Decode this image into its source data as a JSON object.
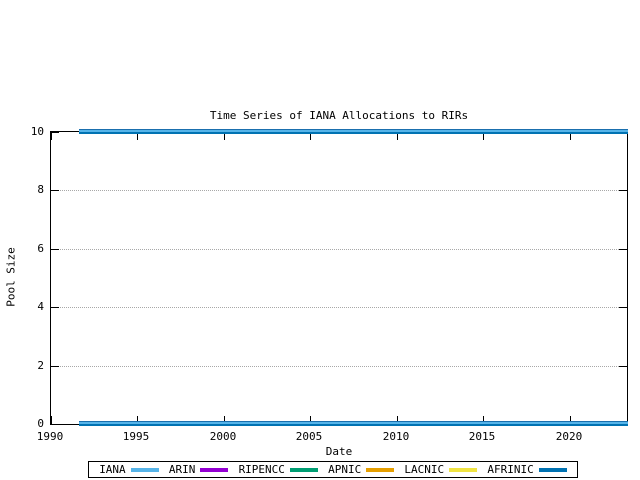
{
  "chart_data": {
    "type": "line",
    "title": "Time Series of IANA Allocations to RIRs",
    "xlabel": "Date",
    "ylabel": "Pool Size",
    "xlim": [
      1990,
      2023.3
    ],
    "ylim": [
      0,
      10
    ],
    "x_ticks": [
      1990,
      1995,
      2000,
      2005,
      2010,
      2015,
      2020
    ],
    "y_ticks": [
      0,
      2,
      4,
      6,
      8,
      10
    ],
    "grid": {
      "horizontal_dotted_at": [
        2,
        4,
        6,
        8
      ],
      "color": "#a8a8a8"
    },
    "legend_position": "bottom-outside-boxed",
    "series": [
      {
        "name": "IANA",
        "color": "#56b4e9"
      },
      {
        "name": "ARIN",
        "color": "#9400d3"
      },
      {
        "name": "RIPENCC",
        "color": "#009e73"
      },
      {
        "name": "APNIC",
        "color": "#e69f00"
      },
      {
        "name": "LACNIC",
        "color": "#f0e442"
      },
      {
        "name": "AFRINIC",
        "color": "#0072b2"
      }
    ],
    "visible_lines": [
      {
        "value": 10,
        "x_start": 1991.7,
        "x_end": 2023.3,
        "stripe_colors": [
          "#1a6fae",
          "#56b4e9",
          "#0072b2"
        ],
        "stripe_heights": [
          1,
          2,
          2
        ]
      },
      {
        "value": 0,
        "x_start": 1991.7,
        "x_end": 2023.3,
        "stripe_colors": [
          "#1a6fae",
          "#56b4e9",
          "#0072b2"
        ],
        "stripe_heights": [
          1,
          2,
          2
        ]
      }
    ]
  },
  "colors": {
    "background": "#ffffff",
    "border": "#000000",
    "text": "#000000",
    "grid": "#a8a8a8"
  }
}
